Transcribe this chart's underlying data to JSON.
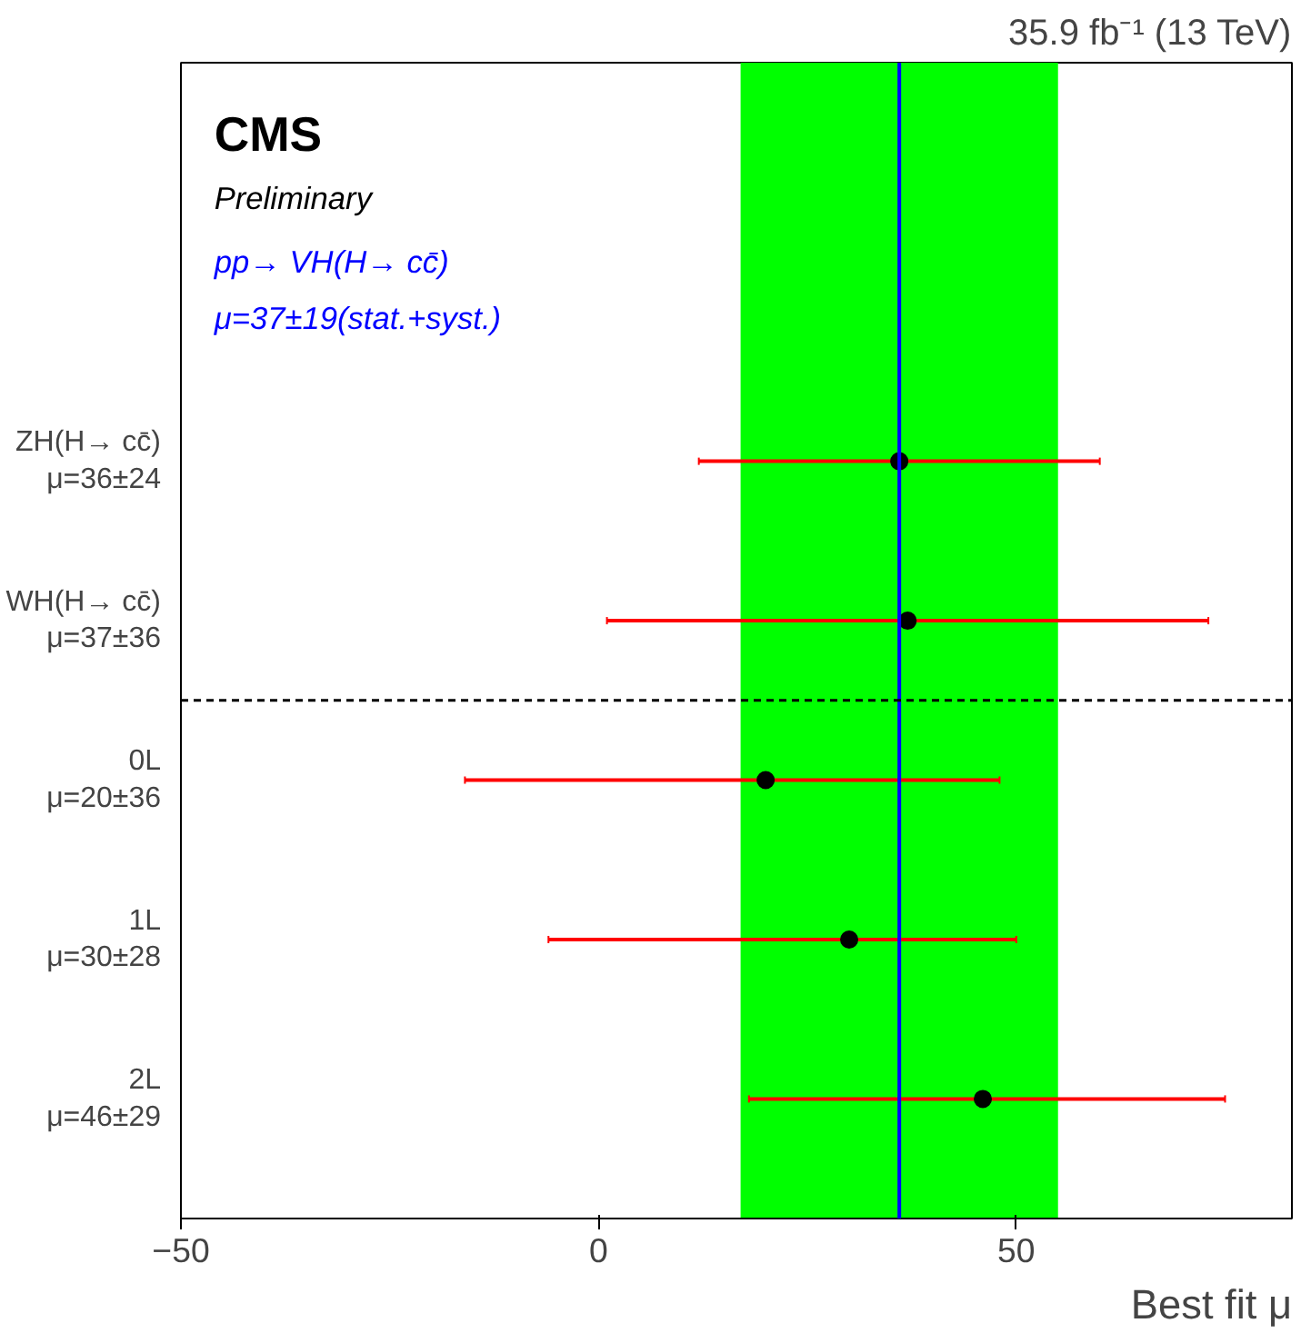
{
  "chart_data": {
    "type": "scatter",
    "orientation": "horizontal",
    "title": "35.9 fb⁻¹ (13 TeV)",
    "xlabel": "Best fit μ",
    "categories": [
      "ZH(H→ cc̄)\nμ=36±24",
      "WH(H→ cc̄)\nμ=37±36",
      "0L\nμ=20±36",
      "1L\nμ=30±28",
      "2L\nμ=46±29"
    ],
    "series": [
      {
        "color": "#000000",
        "values": [
          36,
          37,
          20,
          30,
          46
        ],
        "errors": [
          [
            12,
            60
          ],
          [
            1,
            73
          ],
          [
            -16,
            48
          ],
          [
            -6,
            50
          ],
          [
            18,
            75
          ]
        ]
      }
    ],
    "xlim": [
      -50,
      83
    ],
    "xticks": [
      -50,
      0,
      50
    ],
    "ref_lines": [
      {
        "axis": "x",
        "value": 36,
        "color": "#0000ff",
        "line_style": "solid"
      }
    ],
    "bands": [
      {
        "axis": "x",
        "from": 17,
        "to": 55,
        "color": "#00ff00"
      }
    ],
    "annotations": [
      "CMS",
      "Preliminary",
      "pp→ VH(H→ cc̄)",
      "μ=37±19(stat.+syst.)"
    ],
    "marker": "circle",
    "grid": false
  }
}
